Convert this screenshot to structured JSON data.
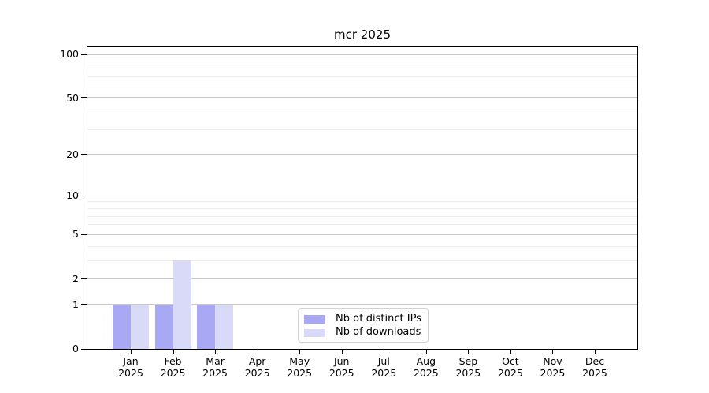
{
  "chart_data": {
    "type": "bar",
    "title": "mcr 2025",
    "categories": [
      "Jan",
      "Feb",
      "Mar",
      "Apr",
      "May",
      "Jun",
      "Jul",
      "Aug",
      "Sep",
      "Oct",
      "Nov",
      "Dec"
    ],
    "category_year": "2025",
    "series": [
      {
        "name": "Nb of distinct IPs",
        "color": "#a8a8f5",
        "values": [
          1,
          1,
          1,
          0,
          0,
          0,
          0,
          0,
          0,
          0,
          0,
          0
        ]
      },
      {
        "name": "Nb of downloads",
        "color": "#d9d9f8",
        "values": [
          1,
          3,
          1,
          0,
          0,
          0,
          0,
          0,
          0,
          0,
          0,
          0
        ]
      }
    ],
    "xlabel": "",
    "ylabel": "",
    "yaxis": {
      "scale": "log1p",
      "tick_values": [
        0,
        1,
        2,
        5,
        10,
        20,
        50,
        100
      ],
      "tick_labels": [
        "0",
        "1",
        "2",
        "5",
        "10",
        "20",
        "50",
        "100"
      ],
      "minor_gridlines": [
        3,
        4,
        6,
        7,
        8,
        9,
        30,
        40,
        60,
        70,
        80,
        90
      ],
      "max_tick": 100
    },
    "grid": "both",
    "legend": {
      "position": "lower center"
    },
    "colors": {
      "grid_major": "#c9c9c9",
      "grid_minor": "#ededed",
      "spine": "#000000",
      "text": "#000000",
      "background": "#ffffff"
    }
  }
}
